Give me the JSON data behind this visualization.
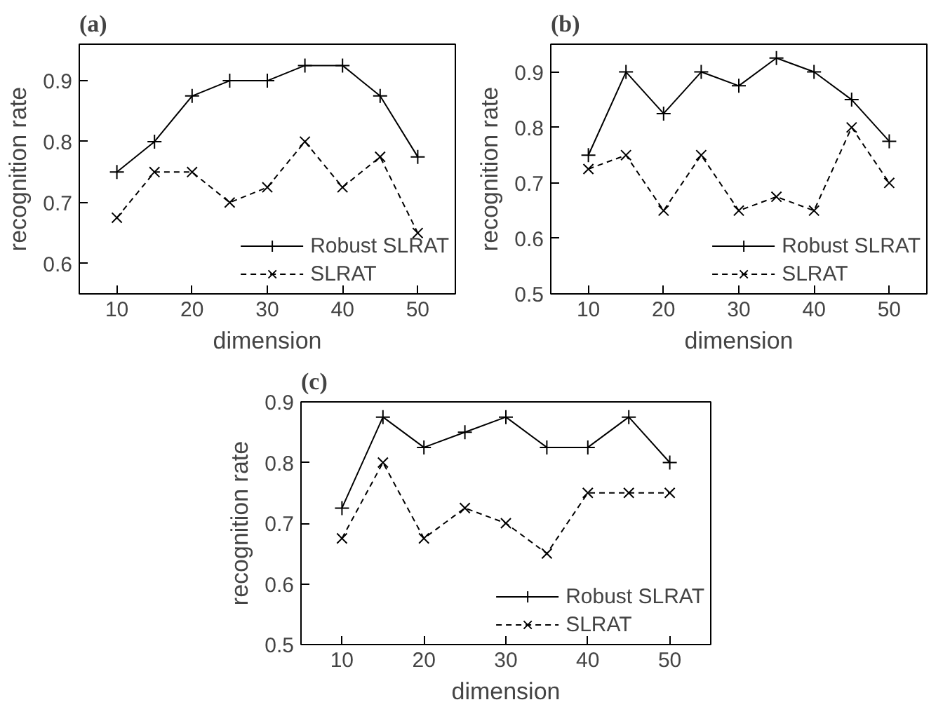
{
  "chart_data": [
    {
      "type": "line",
      "title": "(a)",
      "xlabel": "dimension",
      "ylabel": "recognition rate",
      "x": [
        10,
        15,
        20,
        25,
        30,
        35,
        40,
        45,
        50
      ],
      "xlim": [
        5,
        55
      ],
      "xticks": [
        10,
        20,
        30,
        40,
        50
      ],
      "ylim": [
        0.55,
        0.96
      ],
      "yticks": [
        0.6,
        0.7,
        0.8,
        0.9
      ],
      "grid": false,
      "legend": "bottom right",
      "series": [
        {
          "name": "Robust SLRAT",
          "color": "#000000",
          "marker": "cross",
          "line_style": "solid",
          "values": [
            0.75,
            0.8,
            0.875,
            0.9,
            0.9,
            0.925,
            0.925,
            0.875,
            0.775
          ]
        },
        {
          "name": "SLRAT",
          "color": "#000000",
          "marker": "x",
          "line_style": "dashed",
          "values": [
            0.675,
            0.75,
            0.75,
            0.7,
            0.725,
            0.8,
            0.725,
            0.775,
            0.65
          ]
        }
      ]
    },
    {
      "type": "line",
      "title": "(b)",
      "xlabel": "dimension",
      "ylabel": "recognition rate",
      "x": [
        10,
        15,
        20,
        25,
        30,
        35,
        40,
        45,
        50
      ],
      "xlim": [
        5,
        55
      ],
      "xticks": [
        10,
        20,
        30,
        40,
        50
      ],
      "ylim": [
        0.5,
        0.95
      ],
      "yticks": [
        0.5,
        0.6,
        0.7,
        0.8,
        0.9
      ],
      "grid": false,
      "legend": "bottom right",
      "series": [
        {
          "name": "Robust SLRAT",
          "color": "#000000",
          "marker": "cross",
          "line_style": "solid",
          "values": [
            0.75,
            0.9,
            0.825,
            0.9,
            0.875,
            0.925,
            0.9,
            0.85,
            0.775
          ]
        },
        {
          "name": "SLRAT",
          "color": "#000000",
          "marker": "x",
          "line_style": "dashed",
          "values": [
            0.725,
            0.75,
            0.65,
            0.75,
            0.65,
            0.675,
            0.65,
            0.8,
            0.7
          ]
        }
      ]
    },
    {
      "type": "line",
      "title": "(c)",
      "xlabel": "dimension",
      "ylabel": "recognition rate",
      "x": [
        10,
        15,
        20,
        25,
        30,
        35,
        40,
        45,
        50
      ],
      "xlim": [
        5,
        55
      ],
      "xticks": [
        10,
        20,
        30,
        40,
        50
      ],
      "ylim": [
        0.5,
        0.9
      ],
      "yticks": [
        0.5,
        0.6,
        0.7,
        0.8,
        0.9
      ],
      "grid": false,
      "legend": "bottom right",
      "series": [
        {
          "name": "Robust SLRAT",
          "color": "#000000",
          "marker": "cross",
          "line_style": "solid",
          "values": [
            0.725,
            0.875,
            0.825,
            0.85,
            0.875,
            0.825,
            0.825,
            0.875,
            0.8
          ]
        },
        {
          "name": "SLRAT",
          "color": "#000000",
          "marker": "x",
          "line_style": "dashed",
          "values": [
            0.675,
            0.8,
            0.675,
            0.725,
            0.7,
            0.65,
            0.75,
            0.75,
            0.75
          ]
        }
      ]
    }
  ]
}
